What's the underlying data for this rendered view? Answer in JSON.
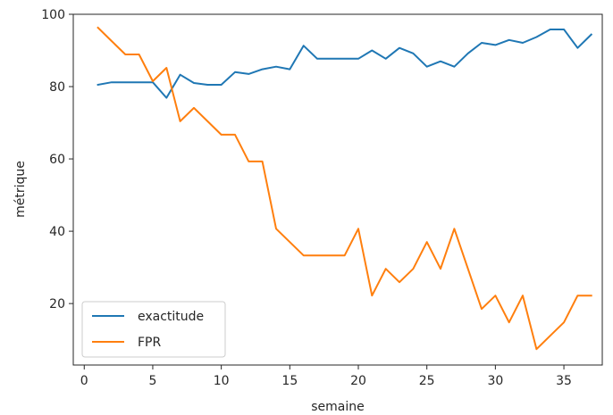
{
  "chart_data": {
    "type": "line",
    "title": "",
    "xlabel": "semaine",
    "ylabel": "métrique",
    "xlim": [
      -0.8,
      37.8
    ],
    "ylim": [
      3,
      100
    ],
    "xticks": [
      0,
      5,
      10,
      15,
      20,
      25,
      30,
      35
    ],
    "yticks": [
      20,
      40,
      60,
      80,
      100
    ],
    "grid": false,
    "legend_position": "lower-left",
    "x": [
      1,
      2,
      3,
      4,
      5,
      6,
      7,
      8,
      9,
      10,
      11,
      12,
      13,
      14,
      15,
      16,
      17,
      18,
      19,
      20,
      21,
      22,
      23,
      24,
      25,
      26,
      27,
      28,
      29,
      30,
      31,
      32,
      33,
      34,
      35,
      36,
      37
    ],
    "series": [
      {
        "name": "exactitude",
        "color": "#1f77b4",
        "values": [
          80.5,
          81.2,
          81.2,
          81.2,
          81.2,
          76.9,
          83.3,
          81.0,
          80.5,
          80.5,
          84.0,
          83.5,
          84.8,
          85.5,
          84.8,
          91.3,
          87.7,
          87.7,
          87.7,
          87.7,
          90.0,
          87.7,
          90.7,
          89.2,
          85.5,
          87.0,
          85.5,
          89.2,
          92.1,
          91.5,
          92.9,
          92.1,
          93.7,
          95.8,
          95.8,
          90.7,
          94.4
        ]
      },
      {
        "name": "FPR",
        "color": "#ff7f0e",
        "values": [
          96.3,
          92.6,
          88.9,
          88.9,
          81.5,
          85.2,
          70.4,
          74.1,
          70.4,
          66.7,
          66.7,
          59.3,
          59.3,
          40.7,
          37.0,
          33.3,
          33.3,
          33.3,
          33.3,
          40.7,
          22.2,
          29.6,
          25.9,
          29.6,
          37.0,
          29.6,
          40.7,
          29.6,
          18.5,
          22.2,
          14.8,
          22.2,
          7.4,
          11.1,
          14.8,
          22.2,
          22.2
        ]
      }
    ]
  }
}
